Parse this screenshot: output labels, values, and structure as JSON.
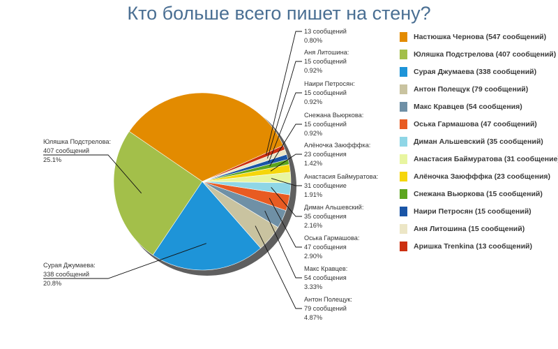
{
  "chart_data": {
    "type": "pie",
    "title": "Кто больше всего пишет на стену?",
    "slices": [
      {
        "name": "Настюшка Чернова",
        "legend": "Настюшка Чернова (547 сообщений)",
        "value": 547,
        "count_text": "",
        "percent_text": "",
        "color": "#e38b00"
      },
      {
        "name": "Юляшка Подстрелова",
        "legend": "Юляшка Подстрелова (407 сообщений)",
        "value": 407,
        "count_text": "407 сообщений",
        "percent_text": "25.1%",
        "label_name": "Юляшка Подстрелова:",
        "color": "#a3bf4a"
      },
      {
        "name": "Сурая Джумаева",
        "legend": "Сурая Джумаева (338 сообщений)",
        "value": 338,
        "count_text": "338 сообщений",
        "percent_text": "20.8%",
        "label_name": "Сурая Джумаева:",
        "color": "#1e94d8"
      },
      {
        "name": "Антон Полещук",
        "legend": "Антон Полещук (79 сообщений)",
        "value": 79,
        "count_text": "79 сообщений",
        "percent_text": "4.87%",
        "label_name": "Антон Полещук:",
        "color": "#c9c3a0"
      },
      {
        "name": "Макс Кравцев",
        "legend": "Макс Кравцев (54 сообщения)",
        "value": 54,
        "count_text": "54 сообщения",
        "percent_text": "3.33%",
        "label_name": "Макс Кравцев:",
        "color": "#6f90a6"
      },
      {
        "name": "Оська Гармашова",
        "legend": "Оська Гармашова (47 сообщений)",
        "value": 47,
        "count_text": "47 сообщения",
        "percent_text": "2.90%",
        "label_name": "Оська Гармашова:",
        "color": "#e85b22"
      },
      {
        "name": "Диман Альшевский",
        "legend": "Диман Альшевский (35 сообщений)",
        "value": 35,
        "count_text": "35 сообщения",
        "percent_text": "2.16%",
        "label_name": "Диман Альшевский:",
        "color": "#8fd6e6"
      },
      {
        "name": "Анастасия Баймуратова",
        "legend": "Анастасия Баймуратова (31 сообщение)",
        "value": 31,
        "count_text": "31 сообщение",
        "percent_text": "1.91%",
        "label_name": "Анастасия Баймуратова:",
        "color": "#e8f5a0"
      },
      {
        "name": "Алёночка Заюфффка",
        "legend": "Алёночка Заюфффка (23 сообщения)",
        "value": 23,
        "count_text": "23 сообщения",
        "percent_text": "1.42%",
        "label_name": "Алёночка Заюфффка:",
        "color": "#f5d60c"
      },
      {
        "name": "Снежана Вьюркова",
        "legend": "Снежана Вьюркова (15 сообщений)",
        "value": 15,
        "count_text": "15 сообщений",
        "percent_text": "0.92%",
        "label_name": "Снежана Вьюркова:",
        "color": "#5ca51e"
      },
      {
        "name": "Наири Петросян",
        "legend": "Наири Петросян (15 сообщений)",
        "value": 15,
        "count_text": "15 сообщений",
        "percent_text": "0.92%",
        "label_name": "Наири Петросян:",
        "color": "#1a55a6"
      },
      {
        "name": "Аня Литошина",
        "legend": "Аня Литошина (15 сообщений)",
        "value": 15,
        "count_text": "15 сообщений",
        "percent_text": "0.92%",
        "label_name": "Аня Литошина:",
        "color": "#ece6c6"
      },
      {
        "name": "Аришка Trenkina",
        "legend": "Аришка Trenkina (13 сообщений)",
        "value": 13,
        "count_text": "13 сообщений",
        "percent_text": "0.80%",
        "label_name": "",
        "color": "#cc3010"
      }
    ]
  }
}
